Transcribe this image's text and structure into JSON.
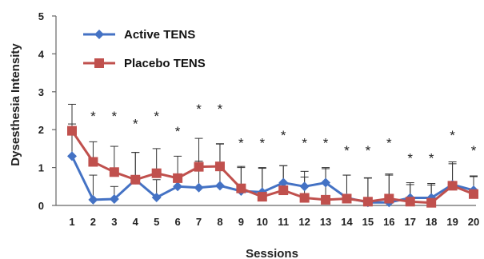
{
  "chart_data": {
    "type": "line",
    "title": "",
    "xlabel": "Sessions",
    "ylabel": "Dysesthesia  Intensity",
    "ylim": [
      0,
      5
    ],
    "yticks": [
      0,
      1,
      2,
      3,
      4,
      5
    ],
    "x": [
      "1",
      "2",
      "3",
      "4",
      "5",
      "6",
      "7",
      "8",
      "9",
      "10",
      "11",
      "12",
      "13",
      "14",
      "15",
      "16",
      "17",
      "18",
      "19",
      "20"
    ],
    "grid": false,
    "legend_position": "top-left",
    "series": [
      {
        "name": "Active  TENS",
        "color": "#4472C4",
        "marker": "diamond",
        "values": [
          1.3,
          0.15,
          0.17,
          0.68,
          0.21,
          0.5,
          0.47,
          0.52,
          0.38,
          0.35,
          0.6,
          0.5,
          0.6,
          0.2,
          0.08,
          0.08,
          0.2,
          0.2,
          0.55,
          0.4
        ],
        "error_upper": [
          0.85,
          0.65,
          0.33,
          0.72,
          0.47,
          0.2,
          0.7,
          1.1,
          0.65,
          0.65,
          0.45,
          0.4,
          0.4,
          0.6,
          0.65,
          0.75,
          0.4,
          0.38,
          0.6,
          0.38
        ]
      },
      {
        "name": "Placebo TENS",
        "color": "#C0504D",
        "marker": "square",
        "values": [
          1.97,
          1.15,
          0.88,
          0.68,
          0.85,
          0.72,
          1.02,
          1.03,
          0.45,
          0.23,
          0.4,
          0.2,
          0.15,
          0.18,
          0.1,
          0.18,
          0.1,
          0.07,
          0.52,
          0.3
        ],
        "error_upper": [
          0.7,
          0.53,
          0.68,
          0.72,
          0.65,
          0.58,
          0.75,
          0.6,
          0.55,
          0.75,
          0.65,
          0.55,
          0.82,
          0.62,
          0.62,
          0.62,
          0.45,
          0.47,
          0.58,
          0.46
        ]
      }
    ],
    "significance_marks": [
      {
        "x": "2",
        "label": "*",
        "level": 2.4
      },
      {
        "x": "3",
        "label": "*",
        "level": 2.4
      },
      {
        "x": "4",
        "label": "*",
        "level": 2.2
      },
      {
        "x": "5",
        "label": "*",
        "level": 2.4
      },
      {
        "x": "6",
        "label": "*",
        "level": 2.0
      },
      {
        "x": "7",
        "label": "*",
        "level": 2.6
      },
      {
        "x": "8",
        "label": "*",
        "level": 2.6
      },
      {
        "x": "9",
        "label": "*",
        "level": 1.7
      },
      {
        "x": "10",
        "label": "*",
        "level": 1.7
      },
      {
        "x": "11",
        "label": "*",
        "level": 1.9
      },
      {
        "x": "12",
        "label": "*",
        "level": 1.7
      },
      {
        "x": "13",
        "label": "*",
        "level": 1.7
      },
      {
        "x": "14",
        "label": "*",
        "level": 1.5
      },
      {
        "x": "15",
        "label": "*",
        "level": 1.5
      },
      {
        "x": "16",
        "label": "*",
        "level": 1.7
      },
      {
        "x": "17",
        "label": "*",
        "level": 1.3
      },
      {
        "x": "18",
        "label": "*",
        "level": 1.3
      },
      {
        "x": "19",
        "label": "*",
        "level": 1.9
      },
      {
        "x": "20",
        "label": "*",
        "level": 1.5
      }
    ]
  }
}
